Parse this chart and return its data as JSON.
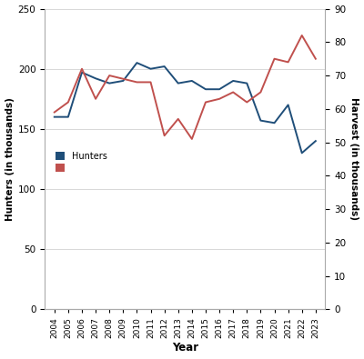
{
  "hunters_years": [
    2004,
    2005,
    2006,
    2007,
    2008,
    2009,
    2010,
    2011,
    2012,
    2013,
    2014,
    2015,
    2016,
    2017,
    2018,
    2019,
    2020,
    2021,
    2022,
    2023
  ],
  "hunters_vals": [
    160,
    160,
    197,
    192,
    188,
    190,
    205,
    200,
    202,
    188,
    190,
    183,
    183,
    190,
    188,
    157,
    155,
    170,
    130,
    140
  ],
  "harvest_years": [
    2004,
    2005,
    2006,
    2007,
    2008,
    2009,
    2010,
    2011,
    2012,
    2013,
    2014,
    2015,
    2016,
    2017,
    2018,
    2019,
    2020,
    2021,
    2022,
    2023
  ],
  "harvest_vals": [
    59,
    62,
    72,
    63,
    70,
    69,
    68,
    68,
    52,
    57,
    51,
    62,
    63,
    65,
    62,
    65,
    75,
    74,
    82,
    75
  ],
  "hunters_color": "#1f4e79",
  "harvest_color": "#c0504d",
  "left_ylim": [
    0,
    250
  ],
  "right_ylim": [
    0,
    90
  ],
  "left_yticks": [
    0,
    50,
    100,
    150,
    200,
    250
  ],
  "right_yticks": [
    0,
    10,
    20,
    30,
    40,
    50,
    60,
    70,
    80,
    90
  ],
  "xlabel": "Year",
  "left_ylabel": "Hunters (in thousands)",
  "right_ylabel": "Harvest (in thousands)",
  "background_color": "#ffffff",
  "grid_color": "#d8d8d8"
}
